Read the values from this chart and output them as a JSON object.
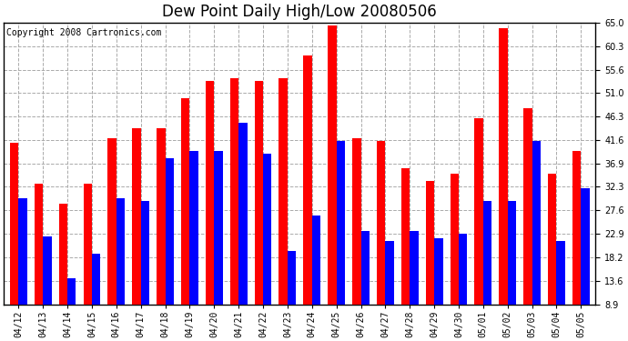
{
  "title": "Dew Point Daily High/Low 20080506",
  "copyright": "Copyright 2008 Cartronics.com",
  "dates": [
    "04/12",
    "04/13",
    "04/14",
    "04/15",
    "04/16",
    "04/17",
    "04/18",
    "04/19",
    "04/20",
    "04/21",
    "04/22",
    "04/23",
    "04/24",
    "04/25",
    "04/26",
    "04/27",
    "04/28",
    "04/29",
    "04/30",
    "05/01",
    "05/02",
    "05/03",
    "05/04",
    "05/05"
  ],
  "high": [
    41.0,
    33.0,
    29.0,
    33.0,
    42.0,
    44.0,
    44.0,
    50.0,
    53.5,
    54.0,
    53.5,
    54.0,
    58.5,
    64.5,
    42.0,
    41.5,
    36.0,
    33.5,
    35.0,
    46.0,
    64.0,
    48.0,
    35.0,
    39.5
  ],
  "low": [
    30.0,
    22.5,
    14.0,
    19.0,
    30.0,
    29.5,
    38.0,
    39.5,
    39.5,
    45.0,
    39.0,
    19.5,
    26.5,
    41.5,
    23.5,
    21.5,
    23.5,
    22.0,
    23.0,
    29.5,
    29.5,
    41.5,
    21.5,
    32.0
  ],
  "high_color": "#ff0000",
  "low_color": "#0000ff",
  "bg_color": "#ffffff",
  "plot_bg_color": "#ffffff",
  "grid_color": "#aaaaaa",
  "ymin": 8.9,
  "ymax": 65.0,
  "yticks": [
    8.9,
    13.6,
    18.2,
    22.9,
    27.6,
    32.3,
    36.9,
    41.6,
    46.3,
    51.0,
    55.6,
    60.3,
    65.0
  ],
  "title_fontsize": 12,
  "copyright_fontsize": 7,
  "tick_fontsize": 7,
  "bar_width": 0.35
}
